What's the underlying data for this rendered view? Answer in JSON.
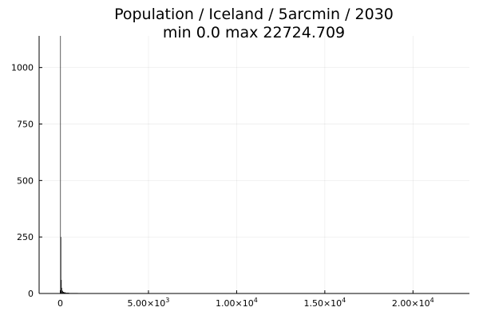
{
  "chart_data": {
    "type": "bar",
    "title": "Population / Iceland / 5arcmin / 2030",
    "subtitle": "min 0.0  max 22724.709",
    "xlabel": "",
    "ylabel": "",
    "xlim": [
      -1200,
      23200
    ],
    "ylim": [
      0,
      1140
    ],
    "x_ticks": [
      {
        "value": 0,
        "mantissa": "0",
        "exp": ""
      },
      {
        "value": 5000,
        "mantissa": "5.00×10",
        "exp": "3"
      },
      {
        "value": 10000,
        "mantissa": "1.00×10",
        "exp": "4"
      },
      {
        "value": 15000,
        "mantissa": "1.50×10",
        "exp": "4"
      },
      {
        "value": 20000,
        "mantissa": "2.00×10",
        "exp": "4"
      }
    ],
    "y_ticks": [
      {
        "value": 0,
        "label": "0"
      },
      {
        "value": 250,
        "label": "250"
      },
      {
        "value": 500,
        "label": "500"
      },
      {
        "value": 750,
        "label": "750"
      },
      {
        "value": 1000,
        "label": "1000"
      }
    ],
    "grid": true,
    "legend": "none",
    "bar_color": "#000000",
    "bins": [
      {
        "x0": 0,
        "x1": 25,
        "value": 1140
      },
      {
        "x0": 25,
        "x1": 50,
        "value": 250
      },
      {
        "x0": 50,
        "x1": 75,
        "value": 60
      },
      {
        "x0": 75,
        "x1": 100,
        "value": 25
      },
      {
        "x0": 100,
        "x1": 150,
        "value": 12
      },
      {
        "x0": 150,
        "x1": 200,
        "value": 7
      },
      {
        "x0": 200,
        "x1": 300,
        "value": 5
      },
      {
        "x0": 300,
        "x1": 500,
        "value": 3
      },
      {
        "x0": 500,
        "x1": 1000,
        "value": 2
      },
      {
        "x0": 1000,
        "x1": 3000,
        "value": 1
      },
      {
        "x0": 3000,
        "x1": 8000,
        "value": 1
      },
      {
        "x0": 8000,
        "x1": 15000,
        "value": 1
      },
      {
        "x0": 15000,
        "x1": 22725,
        "value": 1
      }
    ]
  }
}
